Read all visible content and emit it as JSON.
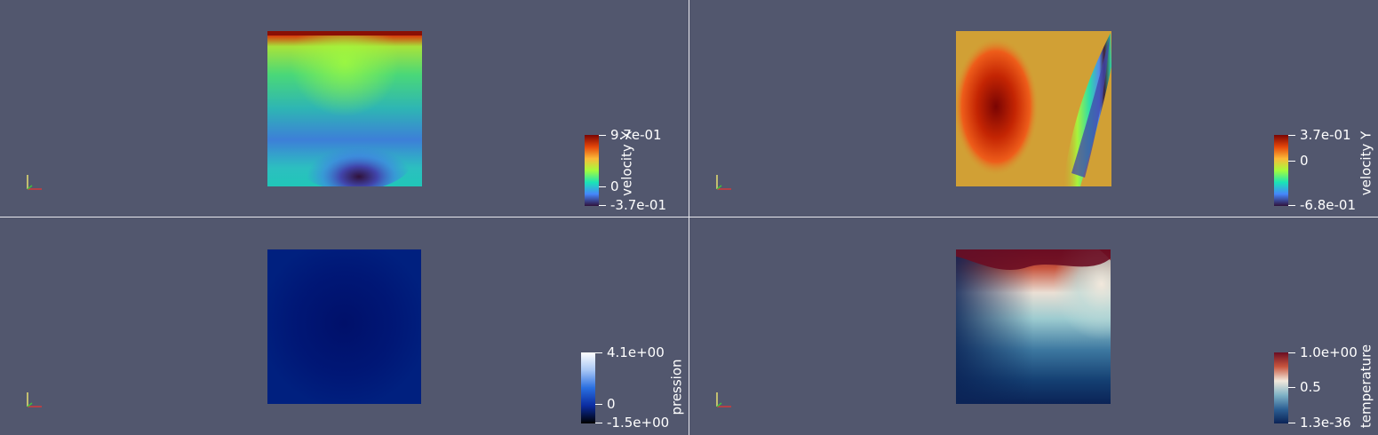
{
  "views": [
    {
      "id": "tl",
      "scalar_name": "velocity X",
      "colormap": "turbo",
      "ticks": [
        "9.7e-01",
        "0",
        "-3.7e-01"
      ]
    },
    {
      "id": "tr",
      "scalar_name": "velocity Y",
      "colormap": "turbo",
      "ticks": [
        "3.7e-01",
        "0",
        "-6.8e-01"
      ]
    },
    {
      "id": "bl",
      "scalar_name": "pression",
      "colormap": "blue-white",
      "ticks": [
        "4.1e+00",
        "0",
        "-1.5e+00"
      ]
    },
    {
      "id": "br",
      "scalar_name": "temperature",
      "colormap": "blue-white-red",
      "ticks": [
        "1.0e+00",
        "0.5",
        "1.3e-36"
      ]
    }
  ],
  "colors": {
    "background": "#52576e",
    "divider": "#e8e8ee",
    "axis_x": "#d23a3a",
    "axis_y": "#e8e070",
    "axis_z": "#3fbf3f"
  }
}
